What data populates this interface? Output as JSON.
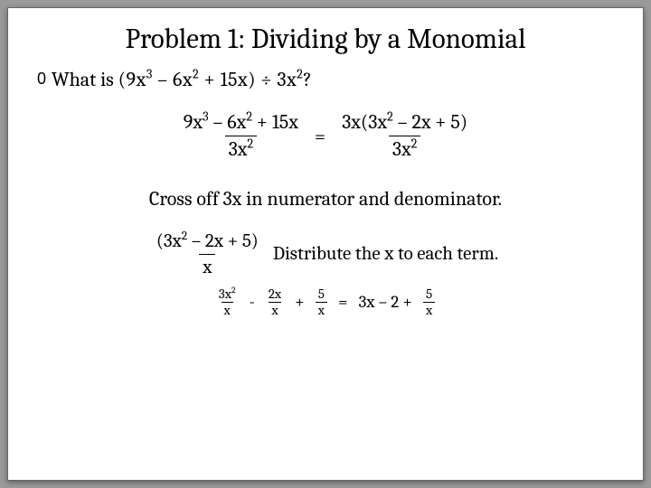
{
  "title": "Problem 1: Dividing by a Monomial",
  "bullet_marker": "0",
  "question_lead": "What is ",
  "question_expr": "(9x³ – 6x² + 15x) ÷ 3x²?",
  "step1": {
    "left_num": "9x³ – 6x² + 15x",
    "left_den": "3x²",
    "equals": "=",
    "right_num": "3x(3x² – 2x + 5)",
    "right_den": "3x²"
  },
  "cross_off": "Cross off 3x in numerator and denominator.",
  "step2": {
    "num": "(3x² – 2x + 5)",
    "den": "x",
    "text": "Distribute the x to each term."
  },
  "final": {
    "t1_num": "3x²",
    "t1_den": "x",
    "minus": "-",
    "t2_num": "2x",
    "t2_den": "x",
    "plus": "+",
    "t3_num": "5",
    "t3_den": "x",
    "equals": "=",
    "r1": "3x – 2 +",
    "r2_num": "5",
    "r2_den": "x"
  },
  "colors": {
    "bg": "#ffffff",
    "text": "#000000",
    "page_bg": "#9a9a9a"
  }
}
